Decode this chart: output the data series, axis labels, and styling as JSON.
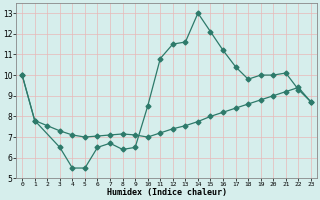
{
  "line1_x": [
    0,
    1,
    3,
    4,
    5,
    6,
    7,
    8,
    9,
    10,
    11,
    12,
    13,
    14,
    15,
    16,
    17,
    18,
    19,
    20,
    21,
    22,
    23
  ],
  "line1_y": [
    10,
    7.8,
    6.5,
    5.5,
    5.5,
    6.5,
    6.7,
    6.4,
    6.5,
    8.5,
    10.8,
    11.5,
    11.6,
    13.0,
    12.1,
    11.2,
    10.4,
    9.8,
    10.0,
    10.0,
    10.1,
    9.3,
    8.7
  ],
  "line2_x": [
    0,
    1,
    2,
    3,
    4,
    5,
    6,
    7,
    8,
    9,
    10,
    11,
    12,
    13,
    14,
    15,
    16,
    17,
    18,
    19,
    20,
    21,
    22,
    23
  ],
  "line2_y": [
    10.0,
    7.8,
    7.55,
    7.3,
    7.1,
    7.0,
    7.05,
    7.1,
    7.15,
    7.1,
    7.0,
    7.2,
    7.4,
    7.55,
    7.75,
    8.0,
    8.2,
    8.4,
    8.6,
    8.8,
    9.0,
    9.2,
    9.4,
    8.7
  ],
  "color": "#2d7a6a",
  "bg_color": "#d6eeec",
  "grid_color": "#f0f0f0",
  "xlabel": "Humidex (Indice chaleur)",
  "xticks": [
    0,
    1,
    2,
    3,
    4,
    5,
    6,
    7,
    8,
    9,
    10,
    11,
    12,
    13,
    14,
    15,
    16,
    17,
    18,
    19,
    20,
    21,
    22,
    23
  ],
  "yticks": [
    5,
    6,
    7,
    8,
    9,
    10,
    11,
    12,
    13
  ],
  "xlim": [
    -0.5,
    23.5
  ],
  "ylim": [
    5,
    13.5
  ],
  "markersize": 2.5
}
